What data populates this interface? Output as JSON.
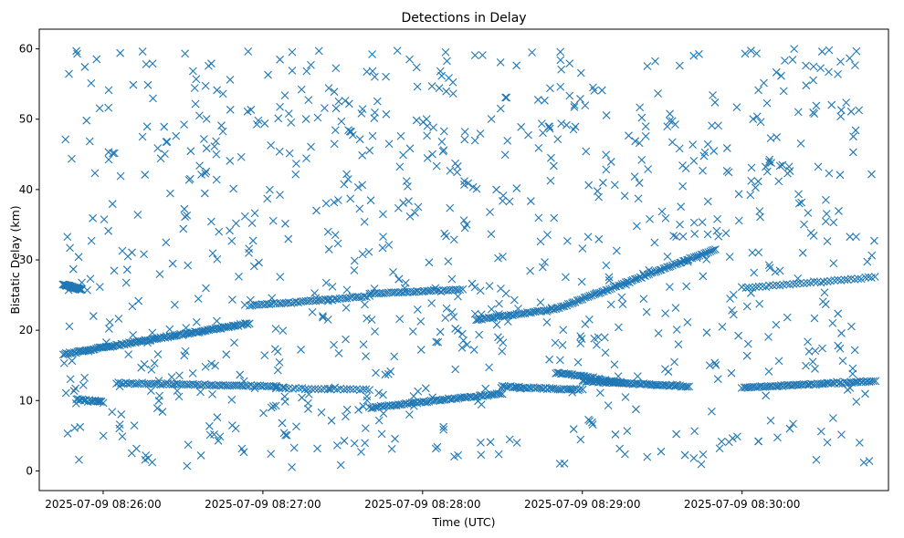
{
  "chart_data": {
    "type": "scatter",
    "title": "Detections in Delay",
    "xlabel": "Time (UTC)",
    "ylabel": "Bistatic Delay (km)",
    "marker": "x",
    "color": "#1f77b4",
    "grid": false,
    "legend": "none",
    "x_ticks": [
      "2025-07-09 08:26:00",
      "2025-07-09 08:27:00",
      "2025-07-09 08:28:00",
      "2025-07-09 08:29:00",
      "2025-07-09 08:30:00"
    ],
    "y_ticks": [
      0,
      10,
      20,
      30,
      40,
      50,
      60
    ],
    "xlim": [
      "2025-07-09 08:25:36",
      "2025-07-09 08:30:55"
    ],
    "ylim": [
      -2.8,
      62.8
    ],
    "tracks": [
      {
        "start": "2025-07-09 08:25:45",
        "end": "2025-07-09 08:26:55",
        "delay_start": 16.6,
        "delay_end": 21.0,
        "count": 120
      },
      {
        "start": "2025-07-09 08:26:55",
        "end": "2025-07-09 08:27:40",
        "delay_start": 23.5,
        "delay_end": 24.8,
        "count": 50
      },
      {
        "start": "2025-07-09 08:28:20",
        "end": "2025-07-09 08:28:50",
        "delay_start": 21.5,
        "delay_end": 23.0,
        "count": 40
      },
      {
        "start": "2025-07-09 08:28:50",
        "end": "2025-07-09 08:29:50",
        "delay_start": 23.0,
        "delay_end": 31.5,
        "count": 90
      },
      {
        "start": "2025-07-09 08:25:45",
        "end": "2025-07-09 08:25:52",
        "delay_start": 26.5,
        "delay_end": 25.8,
        "count": 30
      },
      {
        "start": "2025-07-09 08:27:40",
        "end": "2025-07-09 08:28:15",
        "delay_start": 25.2,
        "delay_end": 25.8,
        "count": 40
      },
      {
        "start": "2025-07-09 08:30:00",
        "end": "2025-07-09 08:30:50",
        "delay_start": 26.0,
        "delay_end": 27.5,
        "count": 40
      },
      {
        "start": "2025-07-09 08:25:50",
        "end": "2025-07-09 08:26:00",
        "delay_start": 10.2,
        "delay_end": 9.8,
        "count": 20
      },
      {
        "start": "2025-07-09 08:26:05",
        "end": "2025-07-09 08:27:05",
        "delay_start": 12.5,
        "delay_end": 12.0,
        "count": 70
      },
      {
        "start": "2025-07-09 08:27:05",
        "end": "2025-07-09 08:27:40",
        "delay_start": 11.8,
        "delay_end": 11.5,
        "count": 30
      },
      {
        "start": "2025-07-09 08:27:40",
        "end": "2025-07-09 08:28:30",
        "delay_start": 9.0,
        "delay_end": 11.0,
        "count": 70
      },
      {
        "start": "2025-07-09 08:28:30",
        "end": "2025-07-09 08:29:00",
        "delay_start": 12.0,
        "delay_end": 11.5,
        "count": 40
      },
      {
        "start": "2025-07-09 08:28:50",
        "end": "2025-07-09 08:29:15",
        "delay_start": 14.0,
        "delay_end": 12.5,
        "count": 40
      },
      {
        "start": "2025-07-09 08:29:00",
        "end": "2025-07-09 08:29:40",
        "delay_start": 12.8,
        "delay_end": 12.0,
        "count": 60
      },
      {
        "start": "2025-07-09 08:30:00",
        "end": "2025-07-09 08:30:50",
        "delay_start": 11.8,
        "delay_end": 12.8,
        "count": 70
      }
    ],
    "clutter": {
      "count": 900,
      "time_range": [
        "2025-07-09 08:25:45",
        "2025-07-09 08:30:50"
      ],
      "delay_range": [
        0.5,
        60
      ]
    }
  }
}
